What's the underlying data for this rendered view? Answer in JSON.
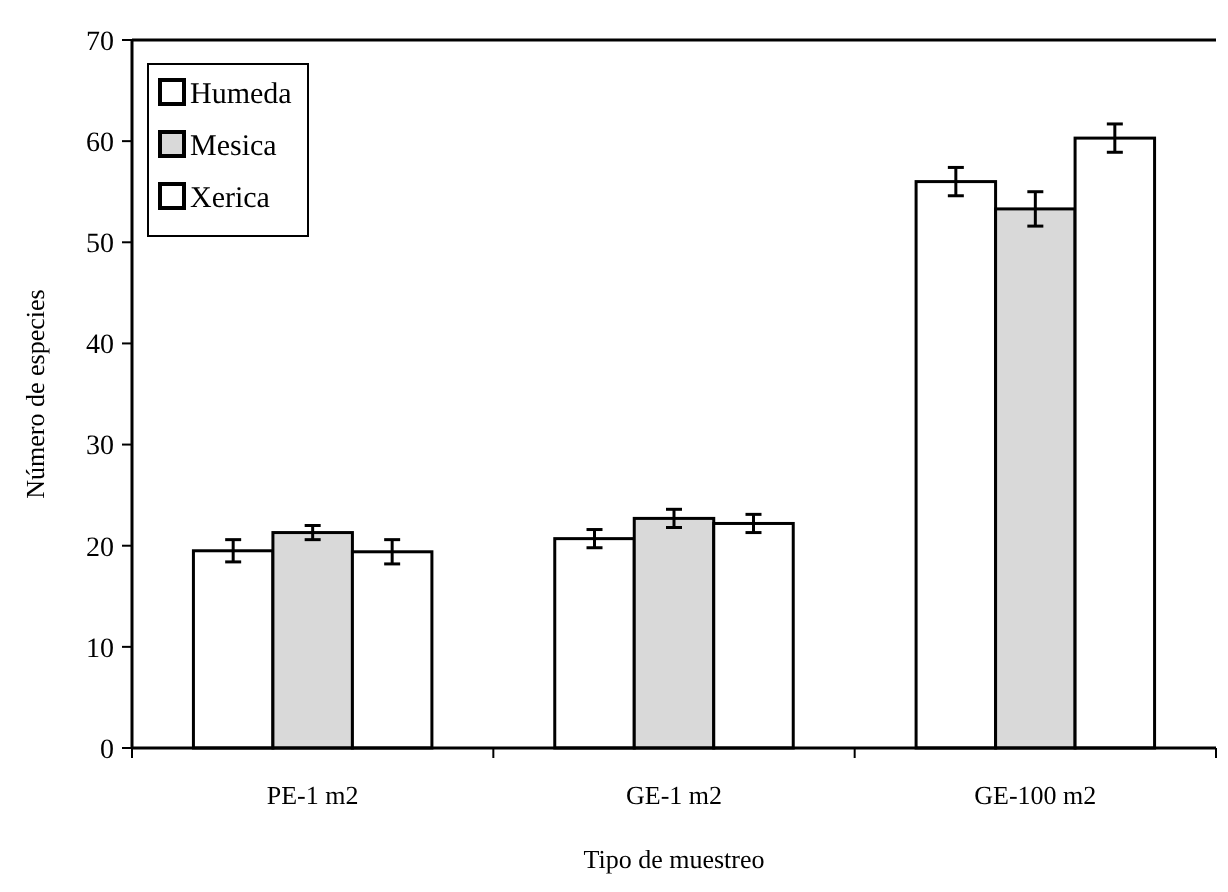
{
  "chart_data": {
    "type": "bar",
    "xlabel": "Tipo de muestreo",
    "ylabel": "Número de especies",
    "categories": [
      "PE-1 m2",
      "GE-1 m2",
      "GE-100 m2"
    ],
    "series": [
      {
        "name": "Humeda",
        "color": "#ffffff",
        "values": [
          19.5,
          20.7,
          56
        ],
        "errors": [
          1.1,
          0.9,
          1.4
        ]
      },
      {
        "name": "Mesica",
        "color": "#d9d9d9",
        "values": [
          21.3,
          22.7,
          53.3
        ],
        "errors": [
          0.7,
          0.9,
          1.7
        ]
      },
      {
        "name": "Xerica",
        "color": "#ffffff",
        "values": [
          19.4,
          22.2,
          60.3
        ],
        "errors": [
          1.2,
          0.9,
          1.4
        ]
      }
    ],
    "ylim": [
      0,
      70
    ],
    "yticks": [
      0,
      10,
      20,
      30,
      40,
      50,
      60,
      70
    ],
    "grid": false,
    "legend": "top left"
  }
}
